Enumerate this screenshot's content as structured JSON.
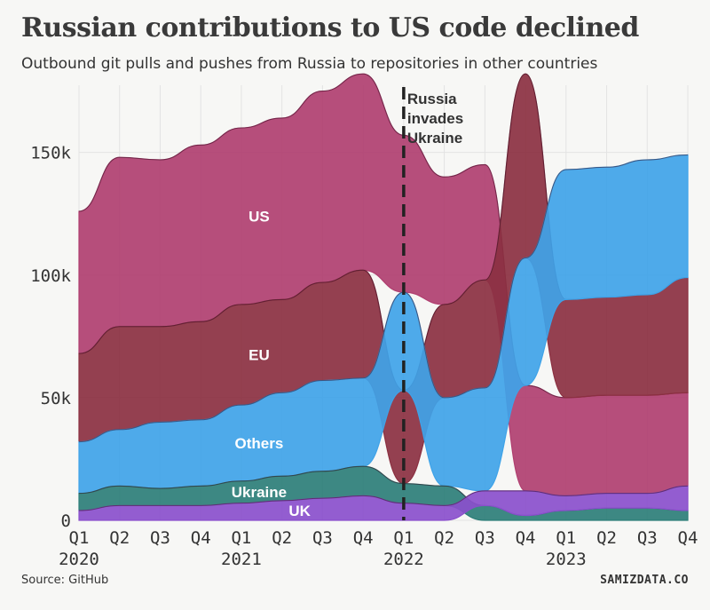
{
  "title": "Russian contributions to US code declined",
  "subtitle": "Outbound git pulls and pushes from Russia to repositories in other countries",
  "source": "Source: GitHub",
  "brand": "SAMIZDATA.CO",
  "chart_data": {
    "type": "area",
    "stacking": "ranked (largest on top each quarter)",
    "x": [
      "Q1",
      "Q2",
      "Q3",
      "Q4",
      "Q1",
      "Q2",
      "Q3",
      "Q4",
      "Q1",
      "Q2",
      "Q3",
      "Q4",
      "Q1",
      "Q2",
      "Q3",
      "Q4"
    ],
    "year_labels": [
      {
        "label": "2020",
        "at": 0
      },
      {
        "label": "2021",
        "at": 4
      },
      {
        "label": "2022",
        "at": 8
      },
      {
        "label": "2023",
        "at": 12
      }
    ],
    "y_ticks": [
      {
        "value": 0,
        "label": "0"
      },
      {
        "value": 50000,
        "label": "50k"
      },
      {
        "value": 100000,
        "label": "100k"
      },
      {
        "value": 150000,
        "label": "150k"
      }
    ],
    "ylim": [
      0,
      185000
    ],
    "grid": true,
    "series": [
      {
        "name": "US",
        "color": "#b03f70",
        "values": [
          58000,
          69000,
          68000,
          72000,
          72000,
          74000,
          78000,
          80000,
          64000,
          52000,
          47000,
          43000,
          40000,
          40000,
          40000,
          38000
        ]
      },
      {
        "name": "EU",
        "color": "#8b3041",
        "values": [
          36000,
          42000,
          39000,
          40000,
          41000,
          38000,
          40000,
          44000,
          38000,
          38000,
          44000,
          75000,
          40000,
          40000,
          41000,
          47000
        ]
      },
      {
        "name": "Others",
        "color": "#3fa3e8",
        "values": [
          21000,
          23000,
          27000,
          27000,
          31000,
          34000,
          37000,
          36000,
          40000,
          36000,
          42000,
          52000,
          53000,
          53000,
          55000,
          50000
        ]
      },
      {
        "name": "Ukraine",
        "color": "#2d7e78",
        "values": [
          7000,
          8000,
          7000,
          8000,
          9000,
          10000,
          11000,
          12000,
          8000,
          8000,
          6000,
          2000,
          4000,
          5000,
          5000,
          4000
        ]
      },
      {
        "name": "UK",
        "color": "#8a4fcc",
        "values": [
          4000,
          6000,
          6000,
          6000,
          7000,
          8000,
          9000,
          10000,
          7000,
          6000,
          6000,
          10000,
          6000,
          6000,
          6000,
          10000
        ]
      }
    ],
    "series_labels": [
      "US",
      "EU",
      "Others",
      "Ukraine",
      "UK"
    ],
    "annotation": {
      "text_lines": [
        "Russia",
        "invades",
        "Ukraine"
      ],
      "at": 8
    }
  }
}
